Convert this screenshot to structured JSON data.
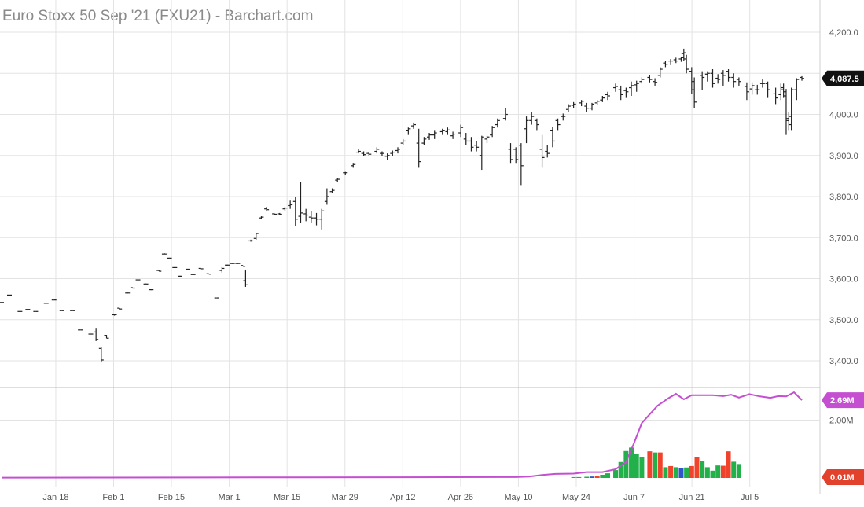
{
  "title": "Euro Stoxx 50 Sep '21 (FXU21) - Barchart.com",
  "colors": {
    "grid": "#e3e3e3",
    "bar": "#222222",
    "up_volume": "#22b04b",
    "down_volume": "#f0432c",
    "neutral_volume": "#2f56c6",
    "open_interest": "#c44fd1",
    "last_price_tag": "#111111",
    "oi_tag": "#c44fd1",
    "volume_tag": "#e2412b"
  },
  "chart_data": [
    {
      "type": "ohlc",
      "title": "Euro Stoxx 50 Sep '21 (FXU21) - Barchart.com",
      "ylim": [
        3330,
        4220
      ],
      "y_ticks": [
        "3,400.0",
        "3,500.0",
        "3,600.0",
        "3,700.0",
        "3,800.0",
        "3,900.0",
        "4,000.0",
        "4,100.0",
        "4,200.0"
      ],
      "last_price_label": "4,087.5",
      "last_price": 4087.5,
      "x_ticks": [
        "Jan 18",
        "Feb 1",
        "Feb 15",
        "Mar 1",
        "Mar 15",
        "Mar 29",
        "Apr 12",
        "Apr 26",
        "May 10",
        "May 24",
        "Jun 7",
        "Jun 21",
        "Jul 5"
      ],
      "x_tick_days": [
        17,
        31,
        45,
        59,
        73,
        87,
        101,
        115,
        129,
        143,
        157,
        171,
        185
      ],
      "x_range_days": [
        3.5,
        202
      ],
      "bars": [
        [
          4,
          3542,
          3542,
          3542,
          3542
        ],
        [
          7,
          3560,
          3560,
          3560,
          3560
        ],
        [
          11,
          3520,
          3520,
          3520,
          3520
        ],
        [
          14,
          3525,
          3525,
          3525,
          3525
        ],
        [
          17,
          3520,
          3520,
          3520,
          3520
        ],
        [
          21,
          3540,
          3540,
          3540,
          3540
        ],
        [
          24,
          3548,
          3548,
          3548,
          3548
        ],
        [
          27,
          3522,
          3522,
          3522,
          3522
        ],
        [
          31,
          3522,
          3522,
          3522,
          3522
        ],
        [
          34,
          3475,
          3475,
          3475,
          3475
        ],
        [
          38,
          3465,
          3465,
          3465,
          3465
        ],
        [
          40,
          3470,
          3480,
          3448,
          3452
        ],
        [
          42,
          3430,
          3433,
          3396,
          3402
        ],
        [
          44,
          3462,
          3463,
          3455,
          3455
        ],
        [
          47,
          3512,
          3514,
          3510,
          3512
        ],
        [
          49,
          3528,
          3528,
          3526,
          3526
        ],
        [
          52,
          3565,
          3566,
          3564,
          3565
        ],
        [
          54,
          3578,
          3578,
          3576,
          3577
        ],
        [
          56,
          3597,
          3598,
          3596,
          3597
        ],
        [
          59,
          3587,
          3588,
          3587,
          3587
        ],
        [
          61,
          3573,
          3574,
          3572,
          3573
        ],
        [
          64,
          3620,
          3620,
          3618,
          3618
        ],
        [
          66,
          3660,
          3662,
          3660,
          3660
        ],
        [
          68,
          3650,
          3651,
          3650,
          3650
        ],
        [
          70,
          3627,
          3628,
          3626,
          3627
        ],
        [
          72,
          3606,
          3607,
          3605,
          3606
        ],
        [
          75,
          3623,
          3624,
          3622,
          3623
        ],
        [
          77,
          3610,
          3611,
          3610,
          3610
        ],
        [
          80,
          3625,
          3625,
          3624,
          3624
        ],
        [
          83,
          3612,
          3612,
          3611,
          3611
        ],
        [
          86,
          3553,
          3553,
          3553,
          3553
        ],
        [
          88,
          3620,
          3628,
          3615,
          3625
        ],
        [
          90,
          3633,
          3634,
          3631,
          3633
        ],
        [
          92,
          3637,
          3638,
          3636,
          3637
        ],
        [
          94,
          3637,
          3638,
          3636,
          3637
        ],
        [
          96,
          3632,
          3632,
          3630,
          3630
        ],
        [
          97,
          3595,
          3620,
          3580,
          3585
        ],
        [
          99,
          3692,
          3695,
          3690,
          3692
        ],
        [
          101,
          3698,
          3712,
          3695,
          3710
        ],
        [
          103,
          3748,
          3752,
          3746,
          3750
        ],
        [
          105,
          3770,
          3775,
          3765,
          3768
        ],
        [
          108,
          3758,
          3759,
          3756,
          3757
        ],
        [
          110,
          3758,
          3760,
          3755,
          3757
        ],
        [
          112,
          3770,
          3775,
          3765,
          3772
        ],
        [
          114,
          3778,
          3790,
          3770,
          3780
        ],
        [
          116,
          3788,
          3800,
          3728,
          3745
        ],
        [
          118,
          3752,
          3835,
          3735,
          3760
        ],
        [
          120,
          3758,
          3770,
          3740,
          3755
        ],
        [
          122,
          3750,
          3765,
          3735,
          3748
        ],
        [
          124,
          3748,
          3760,
          3730,
          3745
        ],
        [
          126,
          3745,
          3770,
          3720,
          3765
        ],
        [
          128,
          3788,
          3820,
          3780,
          3800
        ],
        [
          130,
          3812,
          3820,
          3808,
          3815
        ],
        [
          132,
          3840,
          3845,
          3835,
          3842
        ],
        [
          135,
          3858,
          3860,
          3852,
          3858
        ],
        [
          138,
          3875,
          3880,
          3870,
          3878
        ],
        [
          140,
          3908,
          3915,
          3905,
          3910
        ],
        [
          142,
          3905,
          3910,
          3898,
          3902
        ],
        [
          144,
          3905,
          3908,
          3900,
          3903
        ],
        [
          147,
          3910,
          3920,
          3905,
          3915
        ],
        [
          149,
          3905,
          3910,
          3898,
          3905
        ],
        [
          151,
          3898,
          3905,
          3890,
          3900
        ],
        [
          153,
          3905,
          3912,
          3898,
          3908
        ],
        [
          155,
          3912,
          3920,
          3905,
          3915
        ],
        [
          157,
          3930,
          3940,
          3925,
          3935
        ],
        [
          159,
          3960,
          3968,
          3950,
          3965
        ],
        [
          161,
          3972,
          3980,
          3965,
          3975
        ],
        [
          163,
          3930,
          3965,
          3870,
          3885
        ],
        [
          165,
          3930,
          3945,
          3925,
          3940
        ],
        [
          167,
          3945,
          3955,
          3938,
          3950
        ],
        [
          169,
          3950,
          3960,
          3940,
          3955
        ],
        [
          172,
          3958,
          3965,
          3950,
          3960
        ],
        [
          174,
          3958,
          3968,
          3950,
          3962
        ],
        [
          176,
          3948,
          3958,
          3940,
          3952
        ],
        [
          179,
          3955,
          3975,
          3945,
          3968
        ],
        [
          181,
          3940,
          3955,
          3925,
          3935
        ],
        [
          183,
          3935,
          3945,
          3910,
          3920
        ],
        [
          185,
          3925,
          3935,
          3910,
          3920
        ],
        [
          187,
          3900,
          3948,
          3865,
          3945
        ],
        [
          189,
          3940,
          3948,
          3930,
          3945
        ],
        [
          191,
          3950,
          3972,
          3945,
          3968
        ],
        [
          193,
          3975,
          3990,
          3968,
          3985
        ],
        [
          196,
          3990,
          4015,
          3985,
          4000
        ],
        [
          198,
          3915,
          3930,
          3880,
          3890
        ],
        [
          200,
          3915,
          3920,
          3880,
          3890
        ],
        [
          202,
          3925,
          3930,
          3828,
          3875
        ],
        [
          204,
          3965,
          3995,
          3930,
          3985
        ],
        [
          206,
          3985,
          4005,
          3975,
          3995
        ],
        [
          208,
          3985,
          3990,
          3960,
          3975
        ],
        [
          210,
          3915,
          3950,
          3870,
          3895
        ],
        [
          212,
          3910,
          3925,
          3895,
          3905
        ],
        [
          214,
          3960,
          3970,
          3920,
          3935
        ],
        [
          216,
          3985,
          3990,
          3960,
          3975
        ],
        [
          218,
          3995,
          4002,
          3985,
          3995
        ],
        [
          220,
          4012,
          4025,
          4005,
          4020
        ],
        [
          222,
          4022,
          4030,
          4015,
          4025
        ],
        [
          225,
          4028,
          4035,
          4020,
          4032
        ],
        [
          227,
          4020,
          4028,
          4005,
          4015
        ],
        [
          229,
          4015,
          4028,
          4010,
          4025
        ],
        [
          231,
          4028,
          4035,
          4022,
          4032
        ],
        [
          233,
          4035,
          4045,
          4030,
          4040
        ],
        [
          235,
          4048,
          4055,
          4035,
          4045
        ],
        [
          238,
          4065,
          4075,
          4055,
          4068
        ],
        [
          240,
          4060,
          4070,
          4035,
          4048
        ],
        [
          242,
          4058,
          4065,
          4040,
          4055
        ],
        [
          244,
          4065,
          4080,
          4045,
          4070
        ],
        [
          246,
          4072,
          4082,
          4055,
          4075
        ],
        [
          248,
          4080,
          4090,
          4075,
          4085
        ],
        [
          251,
          4090,
          4095,
          4078,
          4085
        ],
        [
          253,
          4080,
          4088,
          4070,
          4078
        ],
        [
          255,
          4095,
          4115,
          4090,
          4110
        ],
        [
          257,
          4125,
          4130,
          4115,
          4122
        ],
        [
          259,
          4130,
          4135,
          4120,
          4130
        ],
        [
          261,
          4133,
          4138,
          4125,
          4130
        ],
        [
          263,
          4135,
          4140,
          4128,
          4138
        ],
        [
          264,
          4148,
          4160,
          4130,
          4150
        ],
        [
          265,
          4135,
          4145,
          4100,
          4110
        ],
        [
          267,
          4105,
          4115,
          4050,
          4060
        ],
        [
          268,
          4080,
          4090,
          4015,
          4030
        ],
        [
          271,
          4095,
          4105,
          4060,
          4090
        ],
        [
          273,
          4098,
          4105,
          4080,
          4100
        ],
        [
          275,
          4100,
          4110,
          4065,
          4075
        ],
        [
          277,
          4088,
          4098,
          4075,
          4085
        ],
        [
          279,
          4100,
          4108,
          4070,
          4095
        ],
        [
          281,
          4105,
          4110,
          4080,
          4090
        ],
        [
          283,
          4090,
          4100,
          4065,
          4080
        ],
        [
          285,
          4085,
          4090,
          4070,
          4080
        ],
        [
          288,
          4068,
          4078,
          4035,
          4055
        ],
        [
          290,
          4062,
          4078,
          4048,
          4070
        ],
        [
          292,
          4060,
          4072,
          4048,
          4060
        ],
        [
          294,
          4075,
          4085,
          4065,
          4075
        ],
        [
          296,
          4075,
          4080,
          4040,
          4060
        ],
        [
          299,
          4050,
          4065,
          4025,
          4040
        ],
        [
          301,
          4048,
          4075,
          4035,
          4065
        ],
        [
          302,
          4060,
          4075,
          4040,
          4055
        ],
        [
          303,
          4045,
          4062,
          3950,
          3985
        ],
        [
          304,
          3990,
          4005,
          3960,
          3975
        ],
        [
          305,
          3995,
          4065,
          3960,
          4060
        ],
        [
          307,
          4060,
          4088,
          4035,
          4085
        ],
        [
          309,
          4090,
          4093,
          4082,
          4087.5
        ]
      ]
    },
    {
      "type": "bar+line",
      "series": [
        {
          "name": "volume",
          "type": "bar"
        },
        {
          "name": "open interest",
          "type": "line"
        }
      ],
      "ylim": [
        0,
        3.1
      ],
      "units": "M",
      "y_ticks": [
        "2.00M"
      ],
      "tick_values": [
        2.0
      ],
      "oi_label": "2.69M",
      "oi_last": 2.69,
      "volume_label": "0.01M",
      "volume_last": 0.01,
      "volume": [
        [
          222,
          0.03,
          "up"
        ],
        [
          224,
          0.03,
          "up"
        ],
        [
          227,
          0.04,
          "up"
        ],
        [
          229,
          0.05,
          "neutral"
        ],
        [
          231,
          0.07,
          "down"
        ],
        [
          233,
          0.11,
          "up"
        ],
        [
          235,
          0.16,
          "up"
        ],
        [
          238,
          0.27,
          "up"
        ],
        [
          240,
          0.55,
          "up"
        ],
        [
          242,
          0.93,
          "up"
        ],
        [
          244,
          1.05,
          "up"
        ],
        [
          246,
          0.83,
          "up"
        ],
        [
          248,
          0.73,
          "up"
        ],
        [
          251,
          0.92,
          "down"
        ],
        [
          253,
          0.88,
          "up"
        ],
        [
          255,
          0.88,
          "down"
        ],
        [
          257,
          0.37,
          "up"
        ],
        [
          259,
          0.41,
          "down"
        ],
        [
          261,
          0.37,
          "up"
        ],
        [
          263,
          0.33,
          "neutral"
        ],
        [
          265,
          0.36,
          "up"
        ],
        [
          267,
          0.41,
          "down"
        ],
        [
          269,
          0.73,
          "down"
        ],
        [
          271,
          0.58,
          "up"
        ],
        [
          273,
          0.37,
          "up"
        ],
        [
          275,
          0.25,
          "up"
        ],
        [
          277,
          0.43,
          "up"
        ],
        [
          279,
          0.42,
          "down"
        ],
        [
          281,
          0.92,
          "down"
        ],
        [
          283,
          0.56,
          "up"
        ],
        [
          285,
          0.48,
          "up"
        ]
      ],
      "open_interest": [
        [
          4,
          0.01
        ],
        [
          100,
          0.02
        ],
        [
          200,
          0.03
        ],
        [
          205,
          0.05
        ],
        [
          210,
          0.1
        ],
        [
          215,
          0.14
        ],
        [
          222,
          0.15
        ],
        [
          227,
          0.2
        ],
        [
          233,
          0.2
        ],
        [
          238,
          0.3
        ],
        [
          242,
          0.55
        ],
        [
          245,
          1.2
        ],
        [
          248,
          1.9
        ],
        [
          251,
          2.2
        ],
        [
          254,
          2.5
        ],
        [
          258,
          2.75
        ],
        [
          261,
          2.91
        ],
        [
          264,
          2.72
        ],
        [
          267,
          2.86
        ],
        [
          271,
          2.86
        ],
        [
          275,
          2.86
        ],
        [
          279,
          2.83
        ],
        [
          282,
          2.88
        ],
        [
          285,
          2.78
        ],
        [
          289,
          2.9
        ],
        [
          293,
          2.82
        ],
        [
          297,
          2.77
        ],
        [
          300,
          2.83
        ],
        [
          303,
          2.82
        ],
        [
          306,
          2.96
        ],
        [
          309,
          2.69
        ]
      ]
    }
  ]
}
